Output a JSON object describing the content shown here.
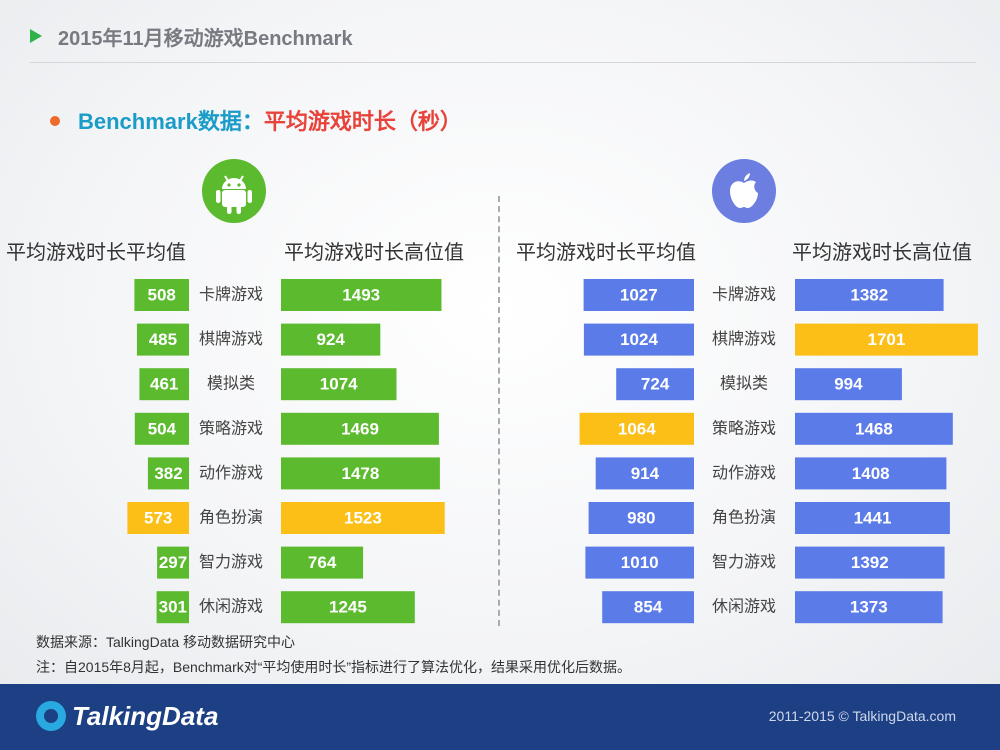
{
  "header": {
    "title": "2015年11月移动游戏Benchmark"
  },
  "subtitle": {
    "prefix": "Benchmark数据：",
    "main": "平均游戏时长（秒）"
  },
  "icons": {
    "android": "android-icon",
    "apple": "apple-icon"
  },
  "columns": {
    "android_avg": "平均游戏时长平均值",
    "android_high": "平均游戏时长高位值",
    "ios_avg": "平均游戏时长平均值",
    "ios_high": "平均游戏时长高位值"
  },
  "chart_data": {
    "type": "bar",
    "categories": [
      "卡牌游戏",
      "棋牌游戏",
      "模拟类",
      "策略游戏",
      "动作游戏",
      "角色扮演",
      "智力游戏",
      "休闲游戏"
    ],
    "series": [
      {
        "name": "平均游戏时长平均值",
        "platform": "android",
        "direction": "left",
        "values": [
          508,
          485,
          461,
          504,
          382,
          573,
          297,
          301
        ],
        "highlight": [
          5
        ]
      },
      {
        "name": "平均游戏时长高位值",
        "platform": "android",
        "direction": "right",
        "values": [
          1493,
          924,
          1074,
          1469,
          1478,
          1523,
          764,
          1245
        ],
        "highlight": [
          5
        ]
      },
      {
        "name": "平均游戏时长平均值",
        "platform": "ios",
        "direction": "left",
        "values": [
          1027,
          1024,
          724,
          1064,
          914,
          980,
          1010,
          854
        ],
        "highlight": [
          3
        ]
      },
      {
        "name": "平均游戏时长高位值",
        "platform": "ios",
        "direction": "right",
        "values": [
          1382,
          1701,
          994,
          1468,
          1408,
          1441,
          1392,
          1373
        ],
        "highlight": [
          1
        ]
      }
    ],
    "colors": {
      "android": "#5cba2e",
      "ios": "#5b7be8",
      "highlight": "#fbbf17"
    }
  },
  "footer": {
    "source": "数据来源：TalkingData 移动数据研究中心",
    "note": "注：自2015年8月起，Benchmark对“平均使用时长”指标进行了算法优化，结果采用优化后数据。",
    "logo": "TalkingData",
    "copyright": "2011-2015 © TalkingData.com"
  }
}
